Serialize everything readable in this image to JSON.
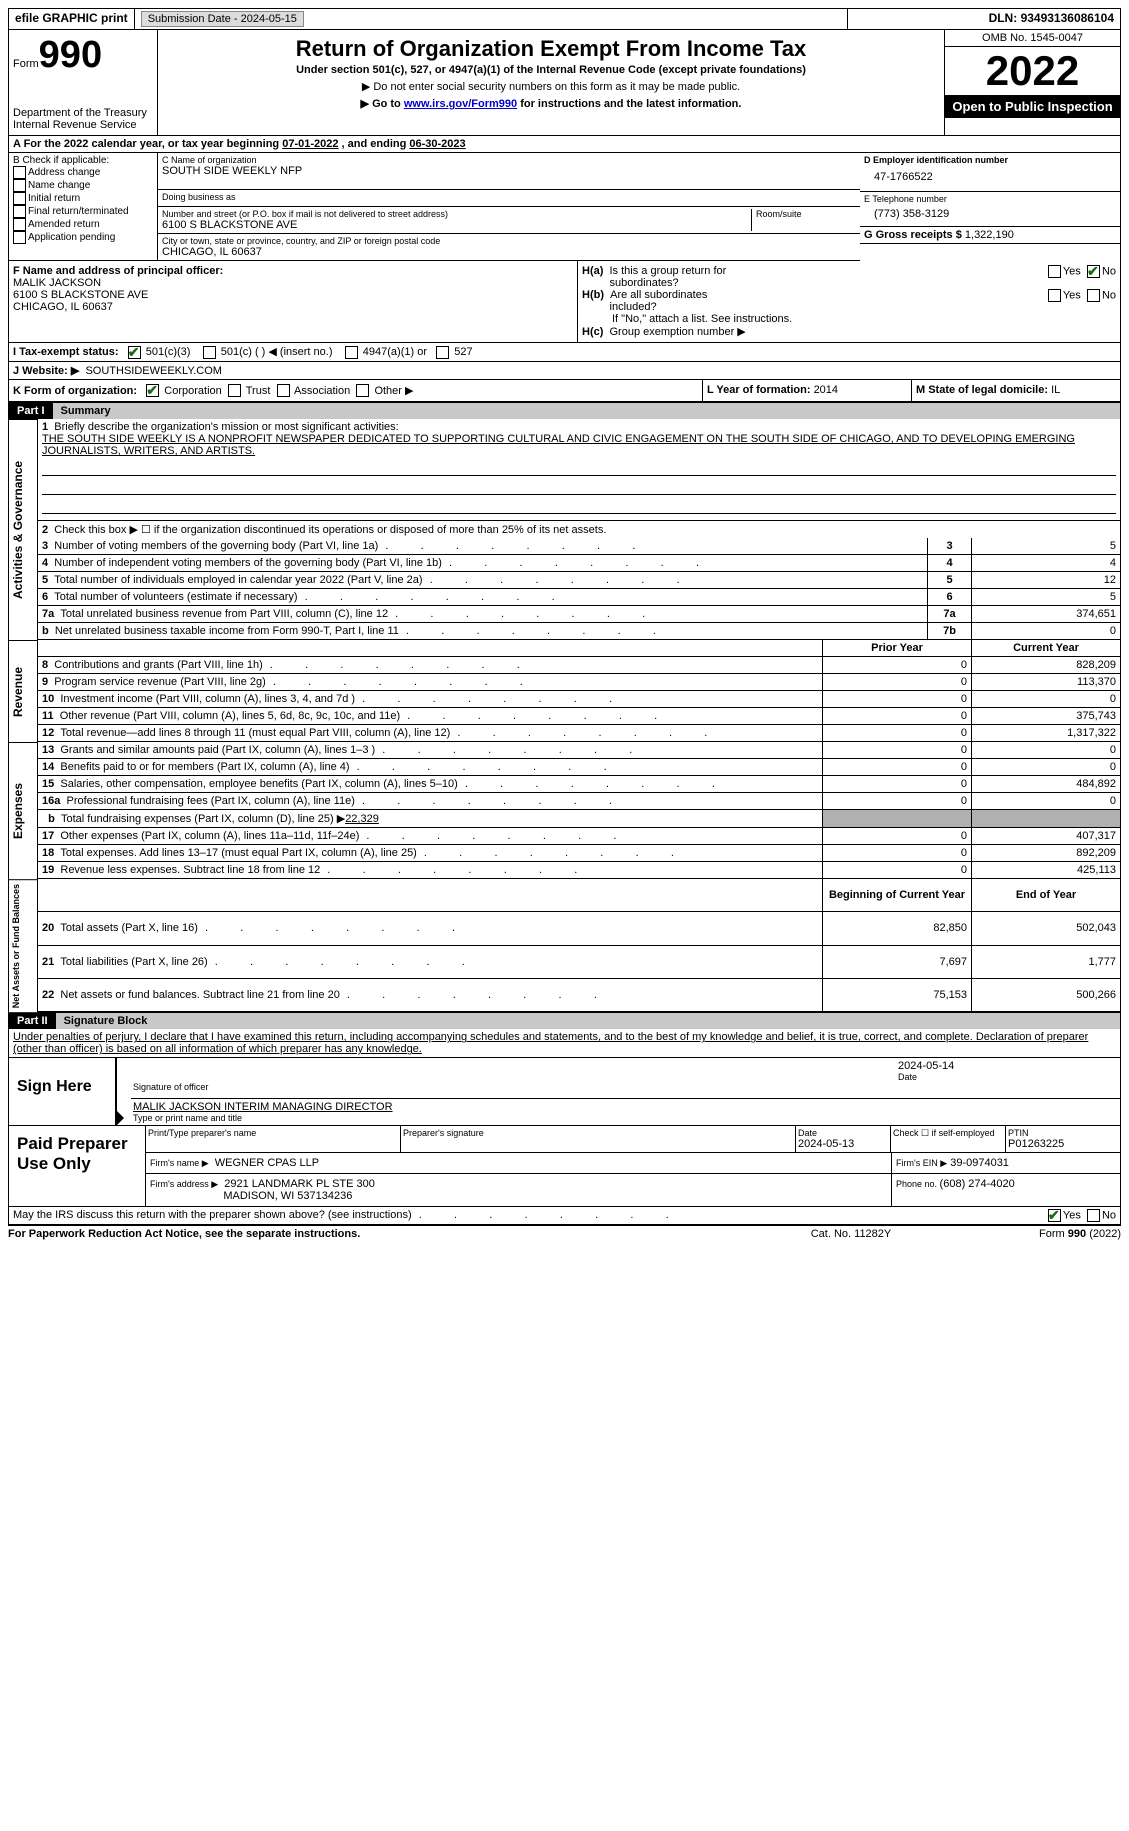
{
  "topbar": {
    "efile": "efile GRAPHIC print",
    "submission_label": "Submission Date - ",
    "submission_date": "2024-05-15",
    "dln_label": "DLN: ",
    "dln": "93493136086104"
  },
  "header": {
    "form_word": "Form",
    "form_no": "990",
    "dept1": "Department of the Treasury",
    "dept2": "Internal Revenue Service",
    "title": "Return of Organization Exempt From Income Tax",
    "subtitle": "Under section 501(c), 527, or 4947(a)(1) of the Internal Revenue Code (except private foundations)",
    "note1": "▶ Do not enter social security numbers on this form as it may be made public.",
    "note2_pre": "▶ Go to ",
    "note2_link": "www.irs.gov/Form990",
    "note2_post": " for instructions and the latest information.",
    "omb": "OMB No. 1545-0047",
    "year": "2022",
    "open": "Open to Public Inspection"
  },
  "line_a": {
    "text_pre": "A For the 2022 calendar year, or tax year beginning ",
    "begin": "07-01-2022",
    "mid": "    , and ending ",
    "end": "06-30-2023"
  },
  "section_b": {
    "header": "B Check if applicable:",
    "items": [
      "Address change",
      "Name change",
      "Initial return",
      "Final return/terminated",
      "Amended return",
      "Application pending"
    ]
  },
  "section_c": {
    "name_label": "C Name of organization",
    "name": "SOUTH SIDE WEEKLY NFP",
    "dba_label": "Doing business as",
    "dba": "",
    "street_label": "Number and street (or P.O. box if mail is not delivered to street address)",
    "room_label": "Room/suite",
    "street": "6100 S BLACKSTONE AVE",
    "city_label": "City or town, state or province, country, and ZIP or foreign postal code",
    "city": "CHICAGO, IL  60637"
  },
  "section_d": {
    "ein_label": "D Employer identification number",
    "ein": "47-1766522",
    "phone_label": "E Telephone number",
    "phone": "(773) 358-3129",
    "gross_label": "G Gross receipts $ ",
    "gross": "1,322,190"
  },
  "officer": {
    "label": "F  Name and address of principal officer:",
    "name": "MALIK JACKSON",
    "addr1": "6100 S BLACKSTONE AVE",
    "addr2": "CHICAGO, IL  60637"
  },
  "section_h": {
    "a_label": "H(a)  Is this a group return for subordinates?",
    "b_label": "H(b)  Are all subordinates included?",
    "b_note": "If \"No,\" attach a list. See instructions.",
    "c_label": "H(c)  Group exemption number ▶",
    "yes": "Yes",
    "no": "No"
  },
  "tax_status": {
    "label": "I  Tax-exempt status:",
    "opt1": "501(c)(3)",
    "opt2": "501(c) (  ) ◀ (insert no.)",
    "opt3": "4947(a)(1) or",
    "opt4": "527"
  },
  "website": {
    "label": "J  Website: ▶",
    "value": "SOUTHSIDEWEEKLY.COM"
  },
  "form_org": {
    "label": "K Form of organization:",
    "opts": [
      "Corporation",
      "Trust",
      "Association",
      "Other ▶"
    ]
  },
  "year_formation": {
    "label": "L Year of formation: ",
    "value": "2014"
  },
  "domicile": {
    "label": "M State of legal domicile: ",
    "value": "IL"
  },
  "part1": {
    "bar": "Part I",
    "title": "Summary",
    "vlabel_act": "Activities & Governance",
    "vlabel_rev": "Revenue",
    "vlabel_exp": "Expenses",
    "vlabel_net": "Net Assets or Fund Balances",
    "line1_label": "Briefly describe the organization's mission or most significant activities:",
    "line1_text": "THE SOUTH SIDE WEEKLY IS A NONPROFIT NEWSPAPER DEDICATED TO SUPPORTING CULTURAL AND CIVIC ENGAGEMENT ON THE SOUTH SIDE OF CHICAGO, AND TO DEVELOPING EMERGING JOURNALISTS, WRITERS, AND ARTISTS.",
    "line2": "Check this box ▶ ☐  if the organization discontinued its operations or disposed of more than 25% of its net assets.",
    "rows_gov": [
      {
        "n": "3",
        "label": "Number of voting members of the governing body (Part VI, line 1a)",
        "box": "3",
        "val": "5"
      },
      {
        "n": "4",
        "label": "Number of independent voting members of the governing body (Part VI, line 1b)",
        "box": "4",
        "val": "4"
      },
      {
        "n": "5",
        "label": "Total number of individuals employed in calendar year 2022 (Part V, line 2a)",
        "box": "5",
        "val": "12"
      },
      {
        "n": "6",
        "label": "Total number of volunteers (estimate if necessary)",
        "box": "6",
        "val": "5"
      },
      {
        "n": "7a",
        "label": "Total unrelated business revenue from Part VIII, column (C), line 12",
        "box": "7a",
        "val": "374,651"
      },
      {
        "n": "  b",
        "label": "Net unrelated business taxable income from Form 990-T, Part I, line 11",
        "box": "7b",
        "val": "0"
      }
    ],
    "col_prior": "Prior Year",
    "col_current": "Current Year",
    "rows_rev": [
      {
        "n": "8",
        "label": "Contributions and grants (Part VIII, line 1h)",
        "prior": "0",
        "cur": "828,209"
      },
      {
        "n": "9",
        "label": "Program service revenue (Part VIII, line 2g)",
        "prior": "0",
        "cur": "113,370"
      },
      {
        "n": "10",
        "label": "Investment income (Part VIII, column (A), lines 3, 4, and 7d )",
        "prior": "0",
        "cur": "0"
      },
      {
        "n": "11",
        "label": "Other revenue (Part VIII, column (A), lines 5, 6d, 8c, 9c, 10c, and 11e)",
        "prior": "0",
        "cur": "375,743"
      },
      {
        "n": "12",
        "label": "Total revenue—add lines 8 through 11 (must equal Part VIII, column (A), line 12)",
        "prior": "0",
        "cur": "1,317,322"
      }
    ],
    "rows_exp": [
      {
        "n": "13",
        "label": "Grants and similar amounts paid (Part IX, column (A), lines 1–3 )",
        "prior": "0",
        "cur": "0"
      },
      {
        "n": "14",
        "label": "Benefits paid to or for members (Part IX, column (A), line 4)",
        "prior": "0",
        "cur": "0"
      },
      {
        "n": "15",
        "label": "Salaries, other compensation, employee benefits (Part IX, column (A), lines 5–10)",
        "prior": "0",
        "cur": "484,892"
      },
      {
        "n": "16a",
        "label": "Professional fundraising fees (Part IX, column (A), line 11e)",
        "prior": "0",
        "cur": "0"
      }
    ],
    "row_16b_label": "Total fundraising expenses (Part IX, column (D), line 25) ▶",
    "row_16b_val": "22,329",
    "rows_exp2": [
      {
        "n": "17",
        "label": "Other expenses (Part IX, column (A), lines 11a–11d, 11f–24e)",
        "prior": "0",
        "cur": "407,317"
      },
      {
        "n": "18",
        "label": "Total expenses. Add lines 13–17 (must equal Part IX, column (A), line 25)",
        "prior": "0",
        "cur": "892,209"
      },
      {
        "n": "19",
        "label": "Revenue less expenses. Subtract line 18 from line 12",
        "prior": "0",
        "cur": "425,113"
      }
    ],
    "col_begin": "Beginning of Current Year",
    "col_end": "End of Year",
    "rows_net": [
      {
        "n": "20",
        "label": "Total assets (Part X, line 16)",
        "prior": "82,850",
        "cur": "502,043"
      },
      {
        "n": "21",
        "label": "Total liabilities (Part X, line 26)",
        "prior": "7,697",
        "cur": "1,777"
      },
      {
        "n": "22",
        "label": "Net assets or fund balances. Subtract line 21 from line 20",
        "prior": "75,153",
        "cur": "500,266"
      }
    ]
  },
  "part2": {
    "bar": "Part II",
    "title": "Signature Block",
    "penalty": "Under penalties of perjury, I declare that I have examined this return, including accompanying schedules and statements, and to the best of my knowledge and belief, it is true, correct, and complete. Declaration of preparer (other than officer) is based on all information of which preparer has any knowledge.",
    "sign_here": "Sign Here",
    "sig_officer": "Signature of officer",
    "sig_date": "2024-05-14",
    "date_label": "Date",
    "officer_name": "MALIK JACKSON  INTERIM MANAGING DIRECTOR",
    "type_name": "Type or print name and title",
    "paid": "Paid Preparer Use Only",
    "print_label": "Print/Type preparer's name",
    "prep_sig_label": "Preparer's signature",
    "prep_date_label": "Date",
    "prep_date": "2024-05-13",
    "check_if": "Check ☐ if self-employed",
    "ptin_label": "PTIN",
    "ptin": "P01263225",
    "firm_name_label": "Firm's name    ▶",
    "firm_name": "WEGNER CPAS LLP",
    "firm_ein_label": "Firm's EIN ▶",
    "firm_ein": "39-0974031",
    "firm_addr_label": "Firm's address ▶",
    "firm_addr1": "2921 LANDMARK PL STE 300",
    "firm_addr2": "MADISON, WI  537134236",
    "firm_phone_label": "Phone no. ",
    "firm_phone": "(608) 274-4020",
    "discuss": "May the IRS discuss this return with the preparer shown above? (see instructions)",
    "paperwork": "For Paperwork Reduction Act Notice, see the separate instructions.",
    "cat": "Cat. No. 11282Y",
    "formrev": "Form 990 (2022)"
  }
}
